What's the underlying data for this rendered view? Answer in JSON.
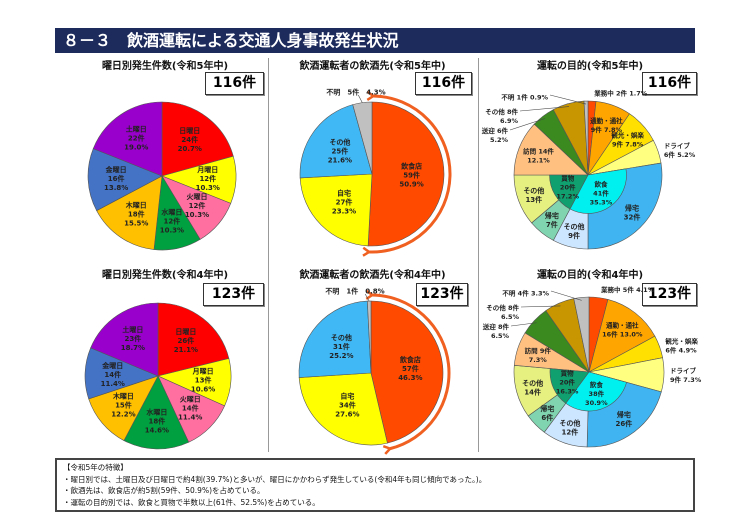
{
  "header": {
    "title": "８－３　飲酒運転による交通人身事故発生状況"
  },
  "charts": [
    {
      "id": "day5",
      "kind": "day",
      "title": "曜日別発生件数(令和5年中)",
      "total": "116件",
      "slices": [
        {
          "label": "日曜日",
          "count": "24件",
          "pct": "20.7%",
          "value": 24,
          "color": "#ff0000"
        },
        {
          "label": "月曜日",
          "count": "12件",
          "pct": "10.3%",
          "value": 12,
          "color": "#ffff00"
        },
        {
          "label": "火曜日",
          "count": "12件",
          "pct": "10.3%",
          "value": 12,
          "color": "#ff6fa0"
        },
        {
          "label": "水曜日",
          "count": "12件",
          "pct": "10.3%",
          "value": 12,
          "color": "#00a040"
        },
        {
          "label": "木曜日",
          "count": "18件",
          "pct": "15.5%",
          "value": 18,
          "color": "#ffc000"
        },
        {
          "label": "金曜日",
          "count": "16件",
          "pct": "13.8%",
          "value": 16,
          "color": "#4472c4"
        },
        {
          "label": "土曜日",
          "count": "22件",
          "pct": "19.0%",
          "value": 22,
          "color": "#9900cc"
        }
      ]
    },
    {
      "id": "drink5",
      "kind": "drink",
      "title": "飲酒運転者の飲酒先(令和5年中)",
      "total": "116件",
      "slices": [
        {
          "label": "飲食店",
          "count": "59件",
          "pct": "50.9%",
          "value": 59,
          "color": "#ff4a00"
        },
        {
          "label": "自宅",
          "count": "27件",
          "pct": "23.3%",
          "value": 27,
          "color": "#ffff00"
        },
        {
          "label": "その他",
          "count": "25件",
          "pct": "21.6%",
          "value": 25,
          "color": "#40b8f5"
        },
        {
          "label": "不明",
          "count": "5件",
          "pct": "4.3%",
          "value": 5,
          "color": "#c0c0c0"
        }
      ]
    },
    {
      "id": "purpose5",
      "kind": "purpose",
      "title": "運転の目的(令和5年中)",
      "total": "116件",
      "slices": [
        {
          "label": "業務中",
          "count": "2件",
          "pct": "1.7%",
          "value": 2,
          "color": "#ff4a00"
        },
        {
          "label": "通勤・通社",
          "count": "9件",
          "pct": "7.8%",
          "value": 9,
          "color": "#ffa500"
        },
        {
          "label": "観光・娯楽",
          "count": "9件",
          "pct": "7.8%",
          "value": 9,
          "color": "#ffe000"
        },
        {
          "label": "ドライブ",
          "count": "6件",
          "pct": "5.2%",
          "value": 6,
          "color": "#ffff80"
        },
        {
          "label": "帰宅",
          "count": "32件",
          "pct": "",
          "value": 32,
          "color": "#40b4f0",
          "group": 0
        },
        {
          "label": "その他",
          "count": "9件",
          "pct": "",
          "value": 9,
          "color": "#cce6ff",
          "group": 0
        },
        {
          "label": "帰宅",
          "count": "7件",
          "pct": "",
          "value": 7,
          "color": "#80d4b0",
          "group": 1
        },
        {
          "label": "その他",
          "count": "13件",
          "pct": "",
          "value": 13,
          "color": "#e6f080",
          "group": 1
        },
        {
          "label": "訪問",
          "count": "14件",
          "pct": "12.1%",
          "value": 14,
          "color": "#ffc080"
        },
        {
          "label": "送迎",
          "count": "6件",
          "pct": "5.2%",
          "value": 6,
          "color": "#3a8a20"
        },
        {
          "label": "その他",
          "count": "8件",
          "pct": "6.9%",
          "value": 8,
          "color": "#c89600"
        },
        {
          "label": "不明",
          "count": "1件",
          "pct": "0.9%",
          "value": 1,
          "color": "#c0c0c0"
        }
      ],
      "groups": [
        {
          "label": "飲食",
          "count": "41件",
          "pct": "35.3%",
          "color": "#00f0f0"
        },
        {
          "label": "買物",
          "count": "20件",
          "pct": "17.2%",
          "color": "#10a070"
        }
      ]
    },
    {
      "id": "day4",
      "kind": "day",
      "title": "曜日別発生件数(令和4年中)",
      "total": "123件",
      "slices": [
        {
          "label": "日曜日",
          "count": "26件",
          "pct": "21.1%",
          "value": 26,
          "color": "#ff0000"
        },
        {
          "label": "月曜日",
          "count": "13件",
          "pct": "10.6%",
          "value": 13,
          "color": "#ffff00"
        },
        {
          "label": "火曜日",
          "count": "14件",
          "pct": "11.4%",
          "value": 14,
          "color": "#ff6fa0"
        },
        {
          "label": "水曜日",
          "count": "18件",
          "pct": "14.6%",
          "value": 18,
          "color": "#00a040"
        },
        {
          "label": "木曜日",
          "count": "15件",
          "pct": "12.2%",
          "value": 15,
          "color": "#ffc000"
        },
        {
          "label": "金曜日",
          "count": "14件",
          "pct": "11.4%",
          "value": 14,
          "color": "#4472c4"
        },
        {
          "label": "土曜日",
          "count": "23件",
          "pct": "18.7%",
          "value": 23,
          "color": "#9900cc"
        }
      ]
    },
    {
      "id": "drink4",
      "kind": "drink",
      "title": "飲酒運転者の飲酒先(令和4年中)",
      "total": "123件",
      "slices": [
        {
          "label": "飲食店",
          "count": "57件",
          "pct": "46.3%",
          "value": 57,
          "color": "#ff4a00"
        },
        {
          "label": "自宅",
          "count": "34件",
          "pct": "27.6%",
          "value": 34,
          "color": "#ffff00"
        },
        {
          "label": "その他",
          "count": "31件",
          "pct": "25.2%",
          "value": 31,
          "color": "#40b8f5"
        },
        {
          "label": "不明",
          "count": "1件",
          "pct": "0.8%",
          "value": 1,
          "color": "#c0c0c0"
        }
      ]
    },
    {
      "id": "purpose4",
      "kind": "purpose",
      "title": "運転の目的(令和4年中)",
      "total": "123件",
      "slices": [
        {
          "label": "業務中",
          "count": "5件",
          "pct": "4.1%",
          "value": 5,
          "color": "#ff4a00"
        },
        {
          "label": "通勤・通社",
          "count": "16件",
          "pct": "13.0%",
          "value": 16,
          "color": "#ffa500"
        },
        {
          "label": "観光・娯楽",
          "count": "6件",
          "pct": "4.9%",
          "value": 6,
          "color": "#ffe000"
        },
        {
          "label": "ドライブ",
          "count": "9件",
          "pct": "7.3%",
          "value": 9,
          "color": "#ffff80"
        },
        {
          "label": "帰宅",
          "count": "26件",
          "pct": "",
          "value": 26,
          "color": "#40b4f0",
          "group": 0
        },
        {
          "label": "その他",
          "count": "12件",
          "pct": "",
          "value": 12,
          "color": "#cce6ff",
          "group": 0
        },
        {
          "label": "帰宅",
          "count": "6件",
          "pct": "",
          "value": 6,
          "color": "#80d4b0",
          "group": 1
        },
        {
          "label": "その他",
          "count": "14件",
          "pct": "",
          "value": 14,
          "color": "#e6f080",
          "group": 1
        },
        {
          "label": "訪問",
          "count": "9件",
          "pct": "7.3%",
          "value": 9,
          "color": "#ffc080"
        },
        {
          "label": "送迎",
          "count": "8件",
          "pct": "6.5%",
          "value": 8,
          "color": "#3a8a20"
        },
        {
          "label": "その他",
          "count": "8件",
          "pct": "6.5%",
          "value": 8,
          "color": "#c89600"
        },
        {
          "label": "不明",
          "count": "4件",
          "pct": "3.3%",
          "value": 4,
          "color": "#c0c0c0"
        }
      ],
      "groups": [
        {
          "label": "飲食",
          "count": "38件",
          "pct": "30.9%",
          "color": "#00f0f0"
        },
        {
          "label": "買物",
          "count": "20件",
          "pct": "16.3%",
          "color": "#10a070"
        }
      ]
    }
  ],
  "notes": {
    "heading": "【令和5年の特徴】",
    "lines": [
      "・曜日別では、土曜日及び日曜日で約4割(39.7%)と多いが、曜日にかかわらず発生している(令和4年も同じ傾向であった。)。",
      "・飲酒先は、飲食店が約5割(59件、50.9%)を占めている。",
      "・運転の目的別では、飲食と買物で半数以上(61件、52.5%)を占めている。"
    ]
  }
}
